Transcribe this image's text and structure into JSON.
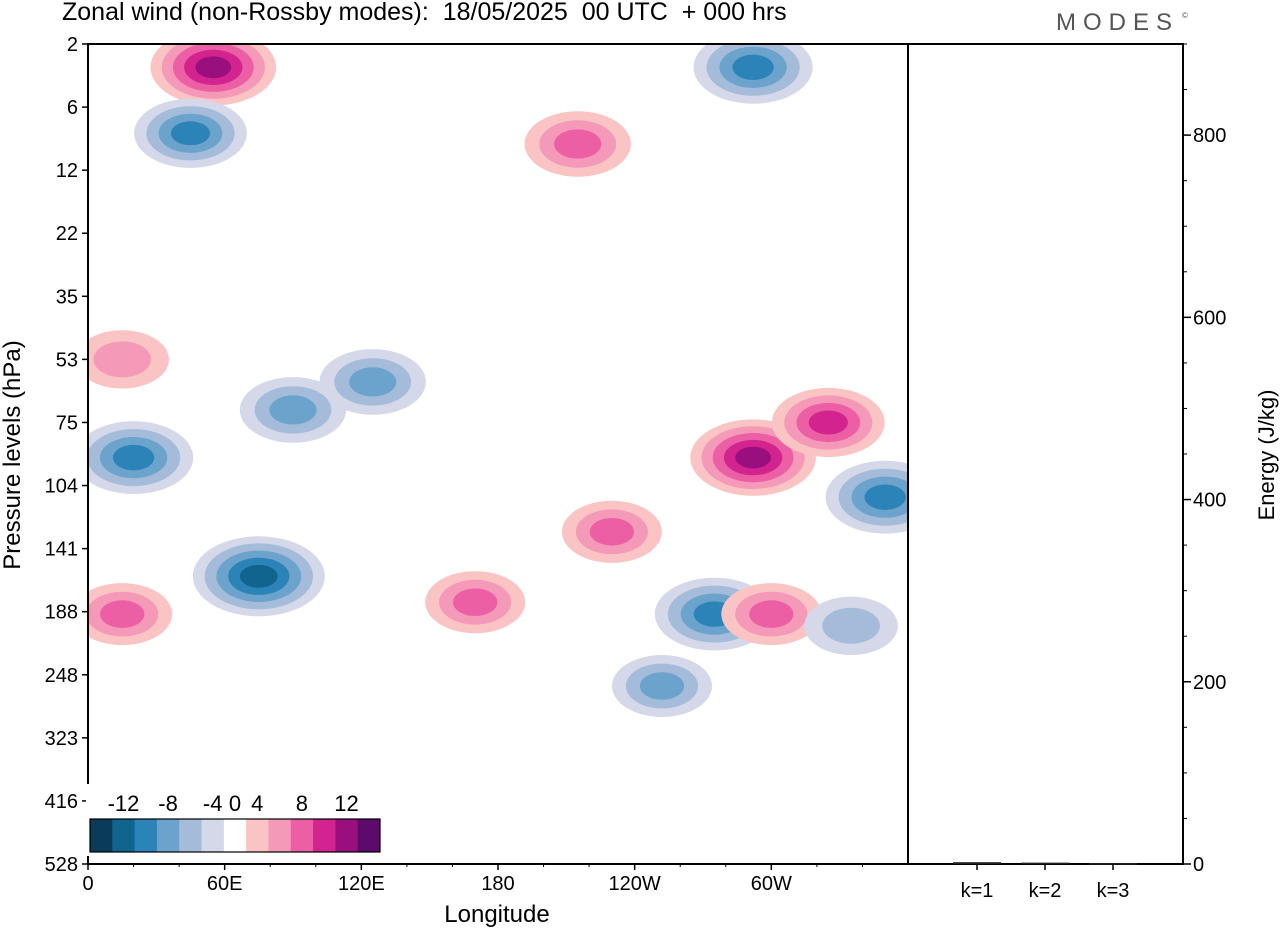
{
  "title": "Zonal wind (non-Rossby modes):  18/05/2025  00 UTC  + 000 hrs",
  "brand": "MODES",
  "brand_mark": "©",
  "chart_data": [
    {
      "type": "heatmap",
      "xlabel": "Longitude",
      "ylabel": "Pressure levels (hPa)",
      "x_ticks": [
        "0",
        "60E",
        "120E",
        "180",
        "120W",
        "60W"
      ],
      "y_ticks": [
        "2",
        "6",
        "12",
        "22",
        "35",
        "53",
        "75",
        "104",
        "141",
        "188",
        "248",
        "323",
        "416",
        "528"
      ],
      "colorbar": {
        "labels": [
          "-12",
          "-8",
          "-4",
          "0",
          "4",
          "8",
          "12"
        ],
        "levels": [
          -14,
          -12,
          -10,
          -8,
          -6,
          -4,
          -2,
          2,
          4,
          6,
          8,
          10,
          12,
          14
        ],
        "colors": [
          "#0b3b5a",
          "#11648e",
          "#2b83b8",
          "#6ba3cc",
          "#a4bbda",
          "#d4d8e9",
          "#ffffff",
          "#fbc4c4",
          "#f599b8",
          "#ec5fa4",
          "#d2238f",
          "#9a0f7e",
          "#5c0a6c"
        ]
      },
      "features": [
        {
          "lon": 55,
          "level": 3,
          "value": 9
        },
        {
          "lon": 45,
          "level": 8,
          "value": -7
        },
        {
          "lon": 215,
          "level": 9,
          "value": 6
        },
        {
          "lon": 292,
          "level": 3,
          "value": -8
        },
        {
          "lon": 15,
          "level": 53,
          "value": 4
        },
        {
          "lon": 20,
          "level": 90,
          "value": -8
        },
        {
          "lon": 90,
          "level": 70,
          "value": -6
        },
        {
          "lon": 125,
          "level": 60,
          "value": -6
        },
        {
          "lon": 292,
          "level": 90,
          "value": 9
        },
        {
          "lon": 325,
          "level": 75,
          "value": 7
        },
        {
          "lon": 350,
          "level": 110,
          "value": -8
        },
        {
          "lon": 75,
          "level": 160,
          "value": -10
        },
        {
          "lon": 15,
          "level": 190,
          "value": 5
        },
        {
          "lon": 170,
          "level": 180,
          "value": 5
        },
        {
          "lon": 230,
          "level": 130,
          "value": 5
        },
        {
          "lon": 275,
          "level": 190,
          "value": -8
        },
        {
          "lon": 300,
          "level": 190,
          "value": 5
        },
        {
          "lon": 252,
          "level": 260,
          "value": -5
        },
        {
          "lon": 335,
          "level": 200,
          "value": -4
        }
      ]
    },
    {
      "type": "bar",
      "categories": [
        "k=1",
        "k=2",
        "k=3"
      ],
      "values": [
        2,
        1.5,
        1
      ],
      "ylabel": "Energy (J/kg)",
      "ylim": [
        0,
        900
      ],
      "y_ticks": [
        "0",
        "200",
        "400",
        "600",
        "800"
      ]
    }
  ]
}
